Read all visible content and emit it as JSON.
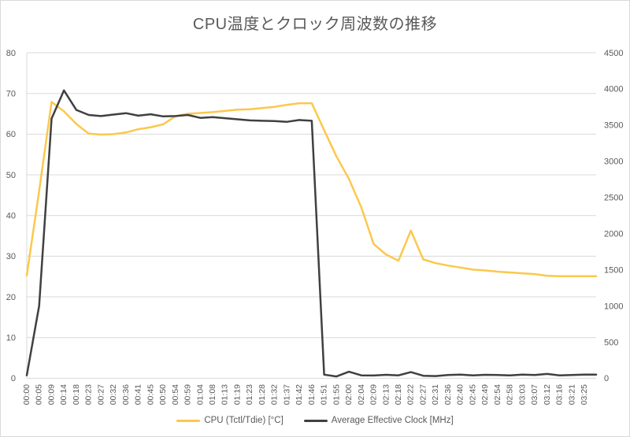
{
  "title": "CPU温度とクロック周波数の推移",
  "colors": {
    "temperature_accent": "#FBC84C",
    "clock_accent": "#404040",
    "gridline": "#D9D9D9",
    "axis_text": "#595959",
    "title_text": "#595959",
    "chart_border": "#D9D9D9",
    "background": "#FFFFFF"
  },
  "legend": {
    "items": [
      {
        "label": "CPU (Tctl/Tdie) [°C]"
      },
      {
        "label": "Average Effective Clock [MHz]"
      }
    ]
  },
  "chart_data": {
    "type": "line",
    "title": "CPU温度とクロック周波数の推移",
    "xlabel": "",
    "ylabel_left": "",
    "ylabel_right": "",
    "grid": true,
    "legend_position": "bottom",
    "categories": [
      "00:00",
      "00:05",
      "00:09",
      "00:14",
      "00:18",
      "00:23",
      "00:27",
      "00:32",
      "00:36",
      "00:41",
      "00:45",
      "00:50",
      "00:54",
      "00:59",
      "01:04",
      "01:08",
      "01:13",
      "01:19",
      "01:23",
      "01:28",
      "01:32",
      "01:37",
      "01:42",
      "01:46",
      "01:51",
      "01:55",
      "02:00",
      "02:04",
      "02:09",
      "02:13",
      "02:18",
      "02:22",
      "02:27",
      "02:31",
      "02:36",
      "02:40",
      "02:45",
      "02:49",
      "02:54",
      "02:58",
      "03:03",
      "03:07",
      "03:12",
      "03:16",
      "03:21",
      "03:25"
    ],
    "left_axis": {
      "min": 0,
      "max": 80,
      "step": 10,
      "ticks": [
        0,
        10,
        20,
        30,
        40,
        50,
        60,
        70,
        80
      ]
    },
    "right_axis": {
      "min": 0,
      "max": 4500,
      "step": 500,
      "ticks": [
        0,
        500,
        1000,
        1500,
        2000,
        2500,
        3000,
        3500,
        4000,
        4500
      ]
    },
    "series": [
      {
        "id": "temperature",
        "name": "CPU (Tctl/Tdie) [°C]",
        "axis": "left",
        "color": "#FBC84C",
        "values": [
          25.3,
          46.0,
          67.9,
          65.6,
          62.5,
          60.1,
          59.9,
          60.0,
          60.4,
          61.2,
          61.7,
          62.4,
          64.4,
          65.0,
          65.2,
          65.4,
          65.7,
          66.0,
          66.1,
          66.4,
          66.7,
          67.2,
          67.6,
          67.6,
          61.0,
          54.5,
          49.0,
          42.0,
          33.0,
          30.4,
          28.9,
          36.3,
          29.2,
          28.3,
          27.7,
          27.2,
          26.7,
          26.5,
          26.2,
          26.0,
          25.8,
          25.6,
          25.2,
          25.1,
          25.1,
          25.1
        ]
      },
      {
        "id": "clock",
        "name": "Average Effective Clock [MHz]",
        "axis": "right",
        "color": "#404040",
        "values": [
          40,
          1000,
          3590,
          3980,
          3710,
          3640,
          3625,
          3645,
          3665,
          3630,
          3650,
          3620,
          3625,
          3640,
          3600,
          3610,
          3595,
          3580,
          3565,
          3560,
          3555,
          3545,
          3570,
          3560,
          50,
          25,
          90,
          40,
          38,
          48,
          40,
          85,
          35,
          30,
          45,
          50,
          40,
          48,
          45,
          40,
          50,
          45,
          60,
          40,
          45,
          50
        ]
      }
    ]
  }
}
